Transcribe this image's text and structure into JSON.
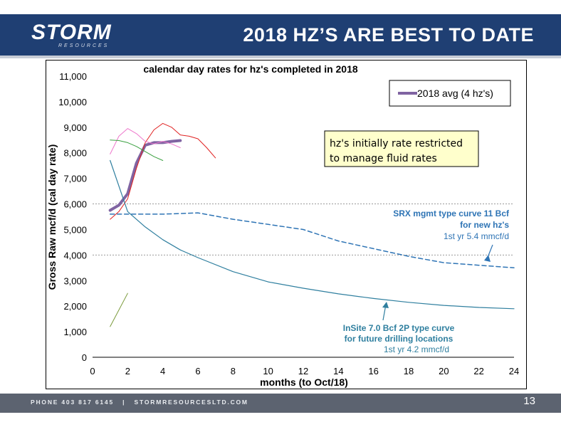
{
  "slide": {
    "logo_text": "STORM",
    "logo_subtext": "RESOURCES",
    "title": "2018 HZ’S ARE BEST TO DATE",
    "footer_phone": "PHONE 403 817 6145",
    "footer_separator": "|",
    "footer_website": "STORMRESOURCESLTD.COM",
    "page_number": "13",
    "colors": {
      "header": "#1f3f73",
      "footer": "#5c6370"
    }
  },
  "chart_data": {
    "type": "line",
    "title": "calendar day rates for hz's completed in 2018",
    "xlabel": "months (to Oct/18)",
    "ylabel": "Gross Raw mcf/d (cal day rate)",
    "xlim": [
      0,
      24
    ],
    "ylim": [
      0,
      11000
    ],
    "x_ticks": [
      0,
      2,
      4,
      6,
      8,
      10,
      12,
      14,
      16,
      18,
      20,
      22,
      24
    ],
    "y_ticks": [
      0,
      1000,
      2000,
      3000,
      4000,
      5000,
      6000,
      7000,
      8000,
      9000,
      10000,
      11000
    ],
    "y_tick_labels": [
      "0",
      "1,000",
      "2,000",
      "3,000",
      "4,000",
      "5,000",
      "6,000",
      "7,000",
      "8,000",
      "9,000",
      "10,000",
      "11,000"
    ],
    "grid": "horizontal dotted at 4,000 and 6,000",
    "legend_position": "top-right",
    "series": [
      {
        "name": "2018 avg (4 hz's)",
        "color": "#8064a2",
        "width": 4,
        "dash": "",
        "in_legend": true,
        "x": [
          1,
          1.5,
          2,
          2.5,
          3,
          3.5,
          4,
          4.5,
          5
        ],
        "y": [
          5750,
          5950,
          6400,
          7600,
          8300,
          8400,
          8400,
          8450,
          8480
        ]
      },
      {
        "color": "#e02020",
        "width": 1,
        "dash": "",
        "in_legend": false,
        "x": [
          1,
          1.5,
          2,
          2.5,
          3,
          3.5,
          4,
          4.5,
          5,
          5.5,
          6,
          6.5,
          7
        ],
        "y": [
          5400,
          5700,
          6200,
          7400,
          8400,
          8900,
          9150,
          9000,
          8700,
          8650,
          8550,
          8200,
          7800
        ]
      },
      {
        "color": "#ee77cc",
        "width": 1,
        "dash": "",
        "in_legend": false,
        "x": [
          1,
          1.5,
          2,
          2.5,
          3,
          3.5,
          4,
          4.5,
          5
        ],
        "y": [
          7950,
          8650,
          8950,
          8750,
          8450,
          8350,
          8450,
          8350,
          8200
        ]
      },
      {
        "color": "#3aa040",
        "width": 1,
        "dash": "",
        "in_legend": false,
        "x": [
          1,
          1.5,
          2,
          2.5,
          3,
          3.5,
          4
        ],
        "y": [
          8500,
          8480,
          8400,
          8250,
          8050,
          7850,
          7700
        ]
      },
      {
        "color": "#2f7f9f",
        "width": 1.2,
        "dash": "",
        "in_legend": false,
        "x": [
          1,
          1.5,
          2,
          3,
          4,
          5,
          6,
          8,
          10,
          12,
          14,
          16,
          18,
          20,
          22,
          24
        ],
        "y": [
          7700,
          6700,
          5700,
          5100,
          4600,
          4200,
          3900,
          3350,
          2950,
          2700,
          2480,
          2300,
          2150,
          2030,
          1950,
          1900
        ]
      },
      {
        "color": "#2e74b5",
        "width": 1.5,
        "dash": "6,4",
        "in_legend": false,
        "x": [
          1,
          2,
          4,
          6,
          8,
          10,
          12,
          14,
          16,
          18,
          20,
          22,
          24
        ],
        "y": [
          5600,
          5600,
          5600,
          5650,
          5400,
          5200,
          5000,
          4550,
          4250,
          3950,
          3700,
          3600,
          3500
        ]
      },
      {
        "color": "#7a9a3a",
        "width": 1,
        "dash": "",
        "in_legend": false,
        "x": [
          1,
          2
        ],
        "y": [
          1200,
          2500
        ]
      }
    ],
    "annotations": [
      {
        "id": "restriction_note",
        "lines": [
          "hz's initially rate restricted",
          "to manage fluid rates"
        ]
      },
      {
        "id": "srx_label",
        "lines": [
          "SRX mgmt type curve 11 Bcf",
          "for new hz's",
          "1st yr 5.4 mmcf/d"
        ]
      },
      {
        "id": "insite_label",
        "lines": [
          "InSite 7.0 Bcf 2P type curve",
          "for future drilling locations",
          "1st yr 4.2 mmcf/d"
        ]
      }
    ]
  }
}
